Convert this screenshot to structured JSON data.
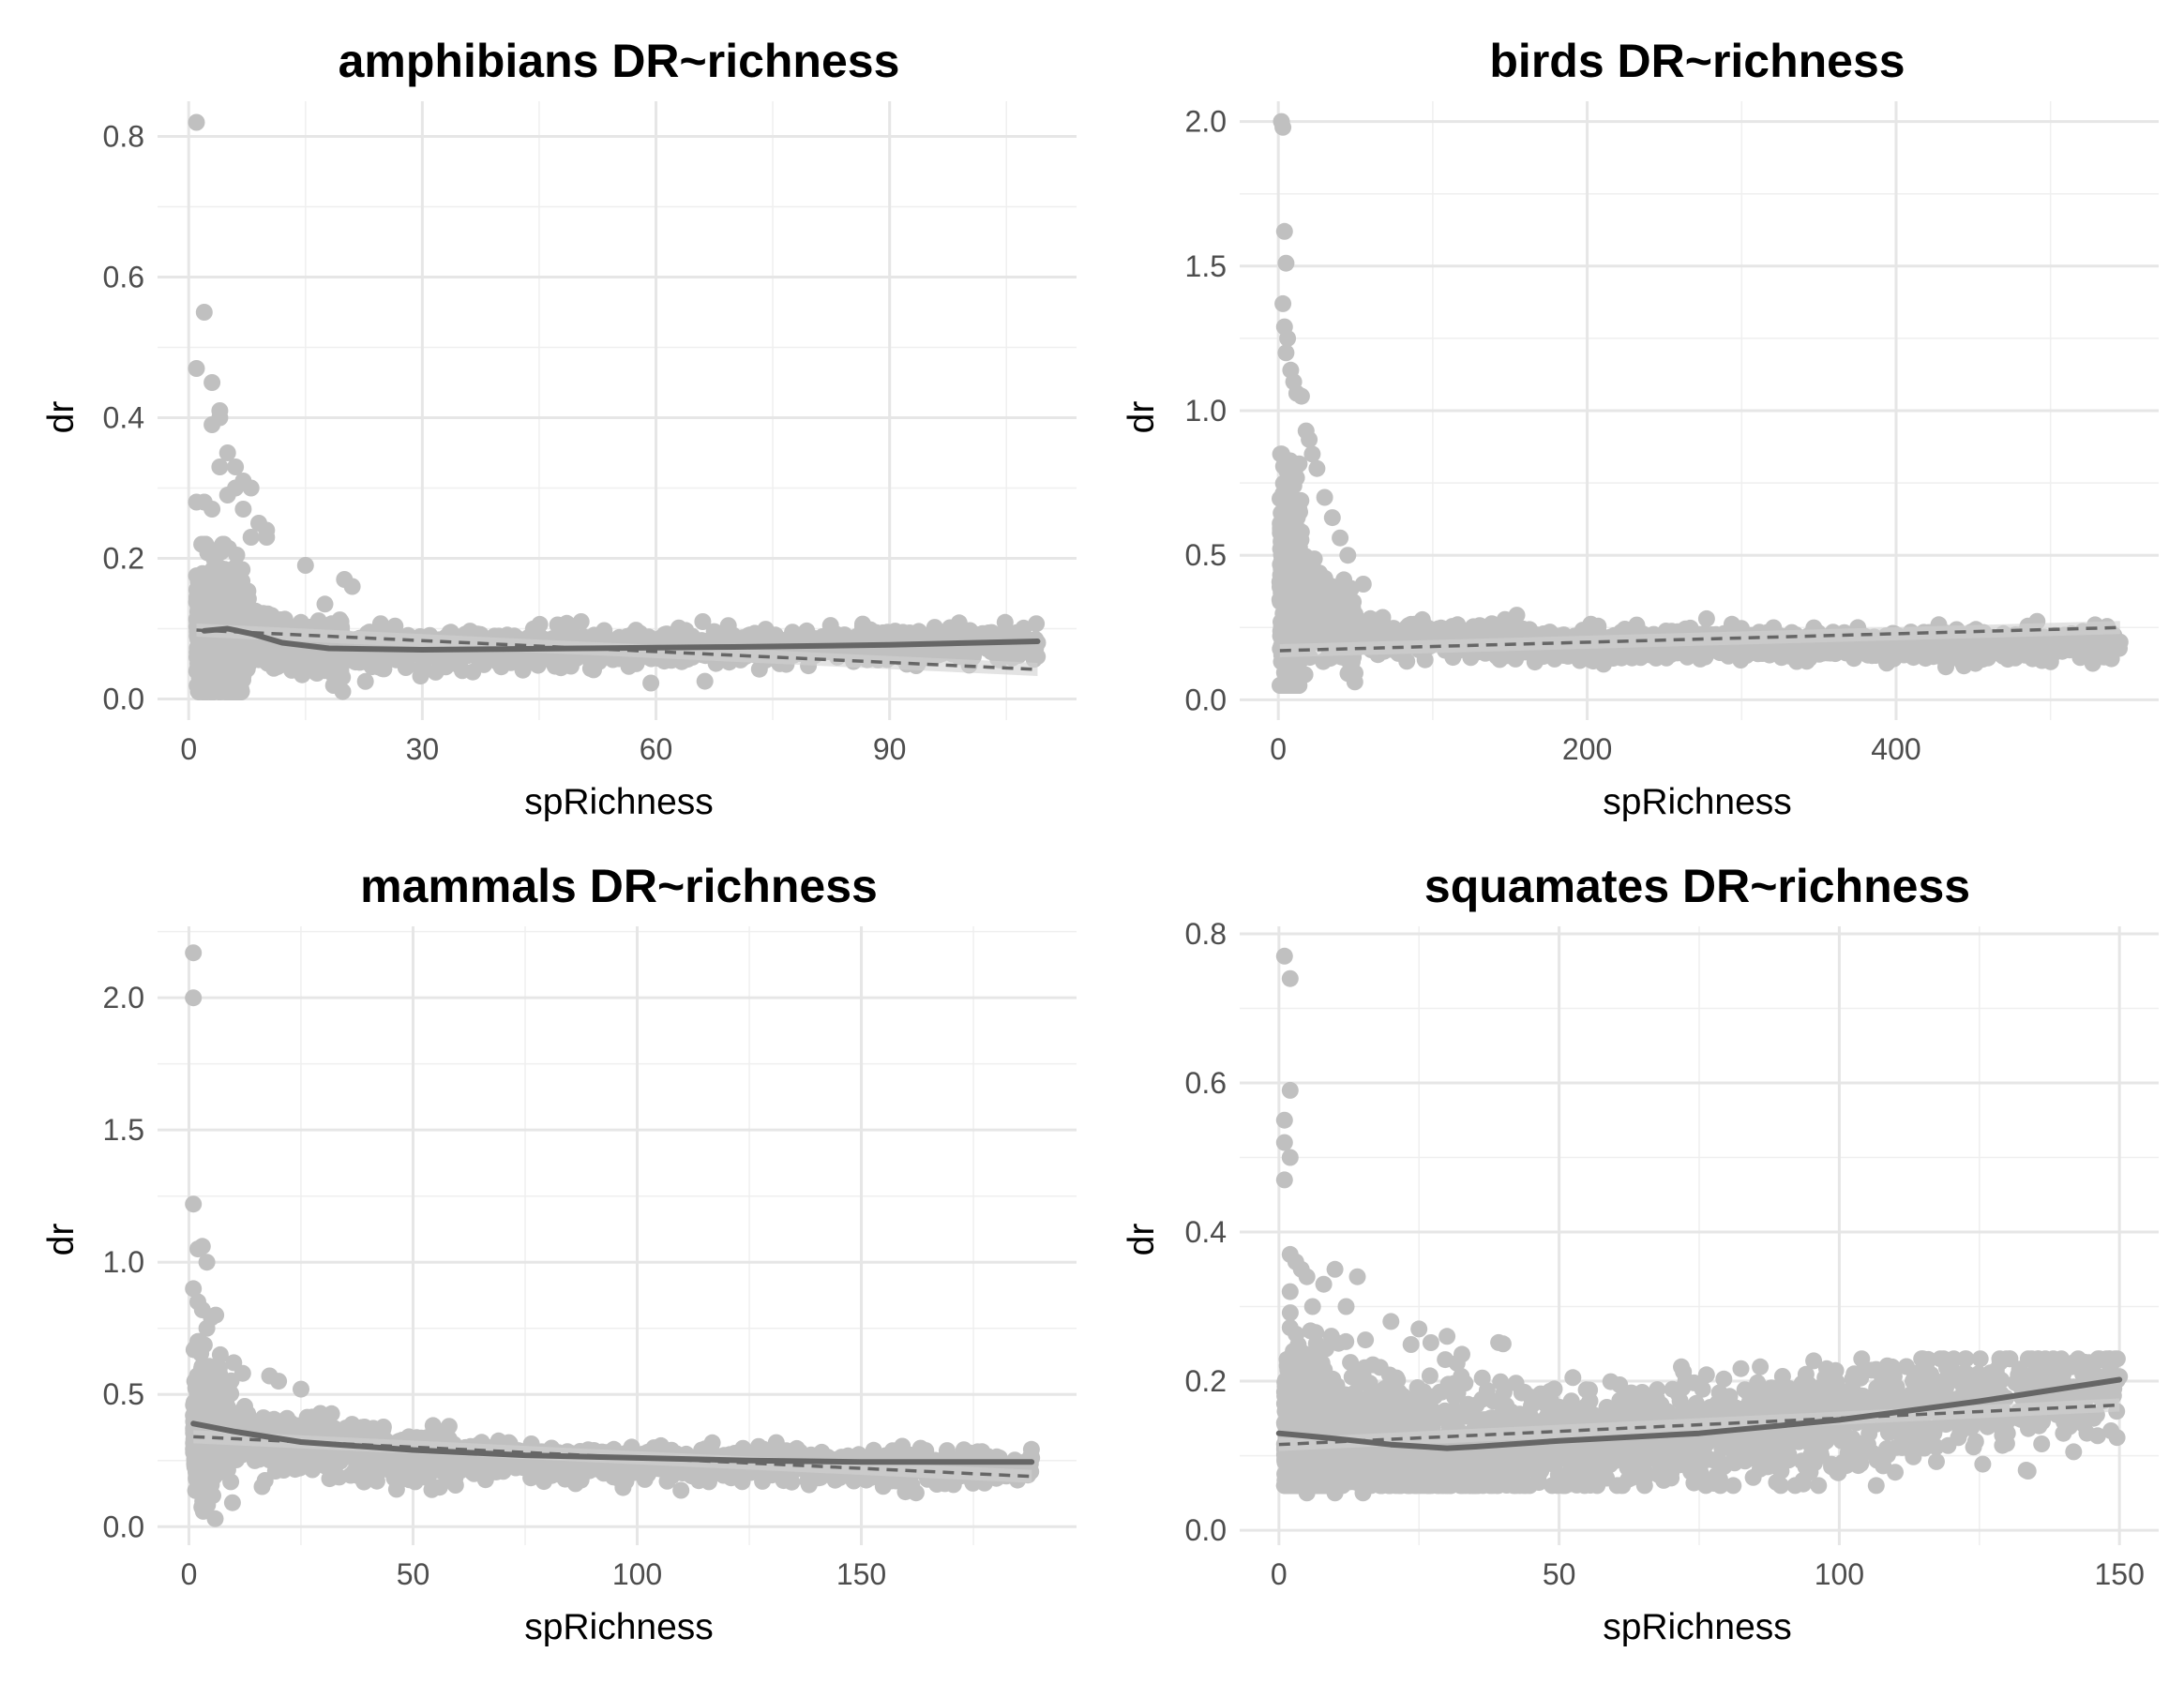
{
  "colors": {
    "background": "#ffffff",
    "points": "#c0c0c0",
    "smooth_line": "#666666",
    "linear_fit": "#666666",
    "confidence_band": "#d0d0d0",
    "grid": "#e6e6e6",
    "tick_text": "#4d4d4d"
  },
  "chart_data": [
    {
      "id": "amphibians",
      "type": "scatter",
      "title": "amphibians DR~richness",
      "xlabel": "spRichness",
      "ylabel": "dr",
      "xlim": [
        -4,
        114
      ],
      "ylim": [
        -0.03,
        0.85
      ],
      "x_ticks": [
        0,
        30,
        60,
        90
      ],
      "x_tick_labels": [
        "0",
        "30",
        "60",
        "90"
      ],
      "y_ticks": [
        0.0,
        0.2,
        0.4,
        0.6,
        0.8
      ],
      "y_tick_labels": [
        "0.0",
        "0.2",
        "0.4",
        "0.6",
        "0.8"
      ],
      "grid": true,
      "x_max_data": 109,
      "outliers": [
        [
          1,
          0.82
        ],
        [
          2,
          0.55
        ],
        [
          1,
          0.47
        ],
        [
          3,
          0.45
        ],
        [
          4,
          0.41
        ],
        [
          4,
          0.4
        ],
        [
          3,
          0.39
        ],
        [
          5,
          0.35
        ],
        [
          4,
          0.33
        ],
        [
          6,
          0.33
        ],
        [
          7,
          0.31
        ],
        [
          6,
          0.3
        ],
        [
          8,
          0.3
        ],
        [
          5,
          0.29
        ],
        [
          2,
          0.28
        ],
        [
          1,
          0.28
        ],
        [
          3,
          0.27
        ],
        [
          7,
          0.27
        ],
        [
          9,
          0.25
        ],
        [
          10,
          0.24
        ],
        [
          8,
          0.23
        ],
        [
          10,
          0.23
        ],
        [
          15,
          0.19
        ],
        [
          20,
          0.17
        ],
        [
          21,
          0.16
        ],
        [
          66,
          0.11
        ],
        [
          109,
          0.08
        ]
      ],
      "smooth": [
        [
          2,
          0.097
        ],
        [
          5,
          0.1
        ],
        [
          8,
          0.093
        ],
        [
          12,
          0.08
        ],
        [
          18,
          0.072
        ],
        [
          30,
          0.07
        ],
        [
          50,
          0.072
        ],
        [
          70,
          0.074
        ],
        [
          90,
          0.077
        ],
        [
          109,
          0.082
        ]
      ],
      "linear": [
        [
          1,
          0.098
        ],
        [
          109,
          0.042
        ]
      ]
    },
    {
      "id": "birds",
      "type": "scatter",
      "title": "birds DR~richness",
      "xlabel": "spRichness",
      "ylabel": "dr",
      "xlim": [
        -25,
        570
      ],
      "ylim": [
        -0.07,
        2.07
      ],
      "x_ticks": [
        0,
        200,
        400
      ],
      "x_tick_labels": [
        "0",
        "200",
        "400"
      ],
      "y_ticks": [
        0.0,
        0.5,
        1.0,
        1.5,
        2.0
      ],
      "y_tick_labels": [
        "0.0",
        "0.5",
        "1.0",
        "1.5",
        "2.0"
      ],
      "grid": true,
      "x_max_data": 545,
      "outliers": [
        [
          2,
          2.0
        ],
        [
          3,
          1.98
        ],
        [
          4,
          1.62
        ],
        [
          5,
          1.51
        ],
        [
          3,
          1.37
        ],
        [
          4,
          1.29
        ],
        [
          6,
          1.25
        ],
        [
          5,
          1.2
        ],
        [
          8,
          1.14
        ],
        [
          10,
          1.1
        ],
        [
          12,
          1.06
        ],
        [
          15,
          1.05
        ],
        [
          18,
          0.93
        ],
        [
          20,
          0.9
        ],
        [
          22,
          0.85
        ],
        [
          25,
          0.8
        ],
        [
          30,
          0.7
        ],
        [
          35,
          0.63
        ],
        [
          40,
          0.56
        ],
        [
          45,
          0.5
        ],
        [
          55,
          0.4
        ],
        [
          545,
          0.2
        ]
      ],
      "smooth": [],
      "linear": [
        [
          1,
          0.17
        ],
        [
          545,
          0.25
        ]
      ]
    },
    {
      "id": "mammals",
      "type": "scatter",
      "title": "mammals DR~richness",
      "xlabel": "spRichness",
      "ylabel": "dr",
      "xlim": [
        -7,
        198
      ],
      "ylim": [
        -0.07,
        2.27
      ],
      "x_ticks": [
        0,
        50,
        100,
        150
      ],
      "x_tick_labels": [
        "0",
        "50",
        "100",
        "150"
      ],
      "y_ticks": [
        0.0,
        0.5,
        1.0,
        1.5,
        2.0
      ],
      "y_tick_labels": [
        "0.0",
        "0.5",
        "1.0",
        "1.5",
        "2.0"
      ],
      "grid": true,
      "x_max_data": 188,
      "outliers": [
        [
          1,
          2.17
        ],
        [
          1,
          2.0
        ],
        [
          1,
          1.22
        ],
        [
          2,
          1.05
        ],
        [
          3,
          1.06
        ],
        [
          4,
          1.0
        ],
        [
          1,
          0.9
        ],
        [
          2,
          0.85
        ],
        [
          3,
          0.82
        ],
        [
          5,
          0.79
        ],
        [
          6,
          0.8
        ],
        [
          4,
          0.75
        ],
        [
          2,
          0.7
        ],
        [
          7,
          0.65
        ],
        [
          10,
          0.62
        ],
        [
          12,
          0.58
        ],
        [
          18,
          0.57
        ],
        [
          20,
          0.55
        ],
        [
          25,
          0.52
        ],
        [
          188,
          0.26
        ]
      ],
      "smooth": [
        [
          1,
          0.39
        ],
        [
          10,
          0.36
        ],
        [
          25,
          0.32
        ],
        [
          50,
          0.29
        ],
        [
          75,
          0.27
        ],
        [
          100,
          0.26
        ],
        [
          125,
          0.25
        ],
        [
          150,
          0.245
        ],
        [
          188,
          0.245
        ]
      ],
      "linear": [
        [
          1,
          0.34
        ],
        [
          188,
          0.19
        ]
      ]
    },
    {
      "id": "squamates",
      "type": "scatter",
      "title": "squamates DR~richness",
      "xlabel": "spRichness",
      "ylabel": "dr",
      "xlim": [
        -7,
        157
      ],
      "ylim": [
        -0.02,
        0.81
      ],
      "x_ticks": [
        0,
        50,
        100,
        150
      ],
      "x_tick_labels": [
        "0",
        "50",
        "100",
        "150"
      ],
      "y_ticks": [
        0.0,
        0.2,
        0.4,
        0.6,
        0.8
      ],
      "y_tick_labels": [
        "0.0",
        "0.2",
        "0.4",
        "0.6",
        "0.8"
      ],
      "grid": true,
      "x_max_data": 150,
      "outliers": [
        [
          1,
          0.77
        ],
        [
          2,
          0.74
        ],
        [
          2,
          0.59
        ],
        [
          1,
          0.55
        ],
        [
          1,
          0.52
        ],
        [
          2,
          0.5
        ],
        [
          1,
          0.47
        ],
        [
          2,
          0.37
        ],
        [
          3,
          0.36
        ],
        [
          4,
          0.35
        ],
        [
          5,
          0.34
        ],
        [
          8,
          0.33
        ],
        [
          10,
          0.35
        ],
        [
          14,
          0.34
        ],
        [
          2,
          0.32
        ],
        [
          6,
          0.3
        ],
        [
          12,
          0.3
        ],
        [
          20,
          0.28
        ],
        [
          25,
          0.27
        ],
        [
          30,
          0.26
        ],
        [
          40,
          0.25
        ],
        [
          5,
          0.05
        ],
        [
          10,
          0.05
        ],
        [
          15,
          0.05
        ],
        [
          70,
          0.07
        ],
        [
          130,
          0.13
        ],
        [
          140,
          0.13
        ],
        [
          149,
          0.19
        ]
      ],
      "smooth": [
        [
          0,
          0.13
        ],
        [
          10,
          0.123
        ],
        [
          20,
          0.115
        ],
        [
          30,
          0.11
        ],
        [
          35,
          0.112
        ],
        [
          50,
          0.12
        ],
        [
          75,
          0.13
        ],
        [
          100,
          0.148
        ],
        [
          125,
          0.173
        ],
        [
          150,
          0.202
        ]
      ],
      "linear": [
        [
          0,
          0.115
        ],
        [
          150,
          0.168
        ]
      ]
    }
  ]
}
